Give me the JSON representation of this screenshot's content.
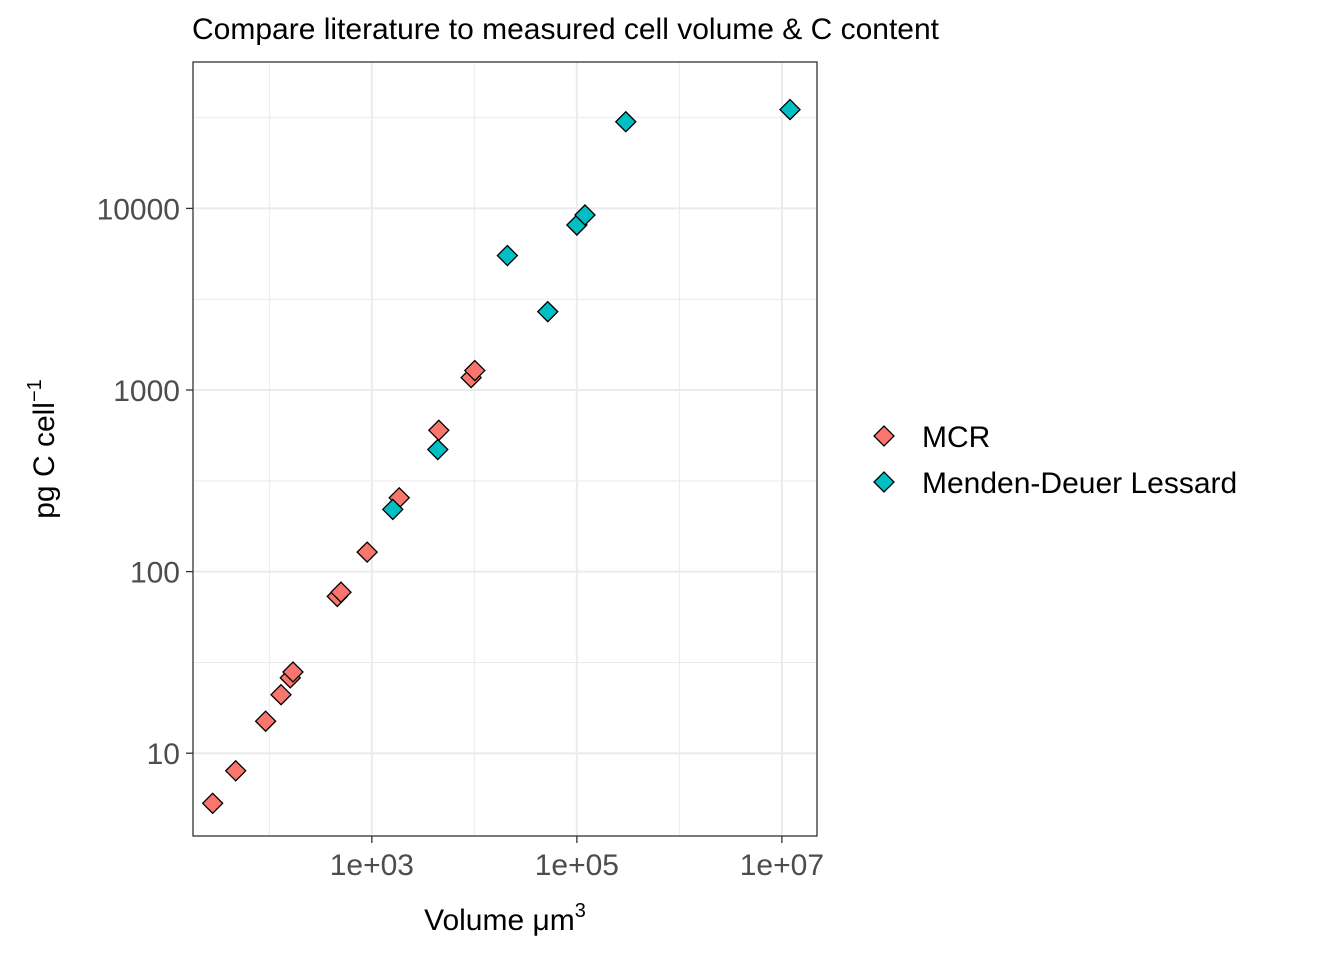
{
  "chart_data": {
    "type": "scatter",
    "title": "Compare literature to measured cell volume & C content",
    "xlabel": {
      "text": "Volume μm",
      "superscript": "3"
    },
    "ylabel": {
      "text": "pg C cell",
      "superscript": "−1"
    },
    "x_scale": "log10",
    "y_scale": "log10",
    "xlim": [
      18,
      22000000
    ],
    "ylim": [
      3.5,
      64000
    ],
    "x_ticks": [
      {
        "value": 1000,
        "label": "1e+03"
      },
      {
        "value": 100000,
        "label": "1e+05"
      },
      {
        "value": 10000000,
        "label": "1e+07"
      }
    ],
    "x_minor_ticks": [
      100,
      10000,
      1000000
    ],
    "y_ticks": [
      {
        "value": 10,
        "label": "10"
      },
      {
        "value": 100,
        "label": "100"
      },
      {
        "value": 1000,
        "label": "1000"
      },
      {
        "value": 10000,
        "label": "10000"
      }
    ],
    "y_minor_ticks": [
      31.6,
      316,
      3162,
      31623
    ],
    "grid": true,
    "legend_position": "right",
    "marker": "diamond",
    "series": [
      {
        "name": "MCR",
        "color": "#f8766d",
        "points": [
          {
            "x": 28,
            "y": 5.3
          },
          {
            "x": 47,
            "y": 8
          },
          {
            "x": 92,
            "y": 15
          },
          {
            "x": 130,
            "y": 21
          },
          {
            "x": 160,
            "y": 26
          },
          {
            "x": 170,
            "y": 28
          },
          {
            "x": 460,
            "y": 73
          },
          {
            "x": 500,
            "y": 77
          },
          {
            "x": 900,
            "y": 128
          },
          {
            "x": 1850,
            "y": 255
          },
          {
            "x": 4500,
            "y": 600
          },
          {
            "x": 9300,
            "y": 1170
          },
          {
            "x": 10100,
            "y": 1280
          }
        ]
      },
      {
        "name": "Menden-Deuer Lessard",
        "color": "#00bfc4",
        "points": [
          {
            "x": 1600,
            "y": 220
          },
          {
            "x": 4400,
            "y": 470
          },
          {
            "x": 21000,
            "y": 5500
          },
          {
            "x": 52000,
            "y": 2700
          },
          {
            "x": 100000,
            "y": 8100
          },
          {
            "x": 120000,
            "y": 9200
          },
          {
            "x": 300000,
            "y": 30000
          },
          {
            "x": 12000000,
            "y": 35000
          }
        ]
      }
    ]
  }
}
